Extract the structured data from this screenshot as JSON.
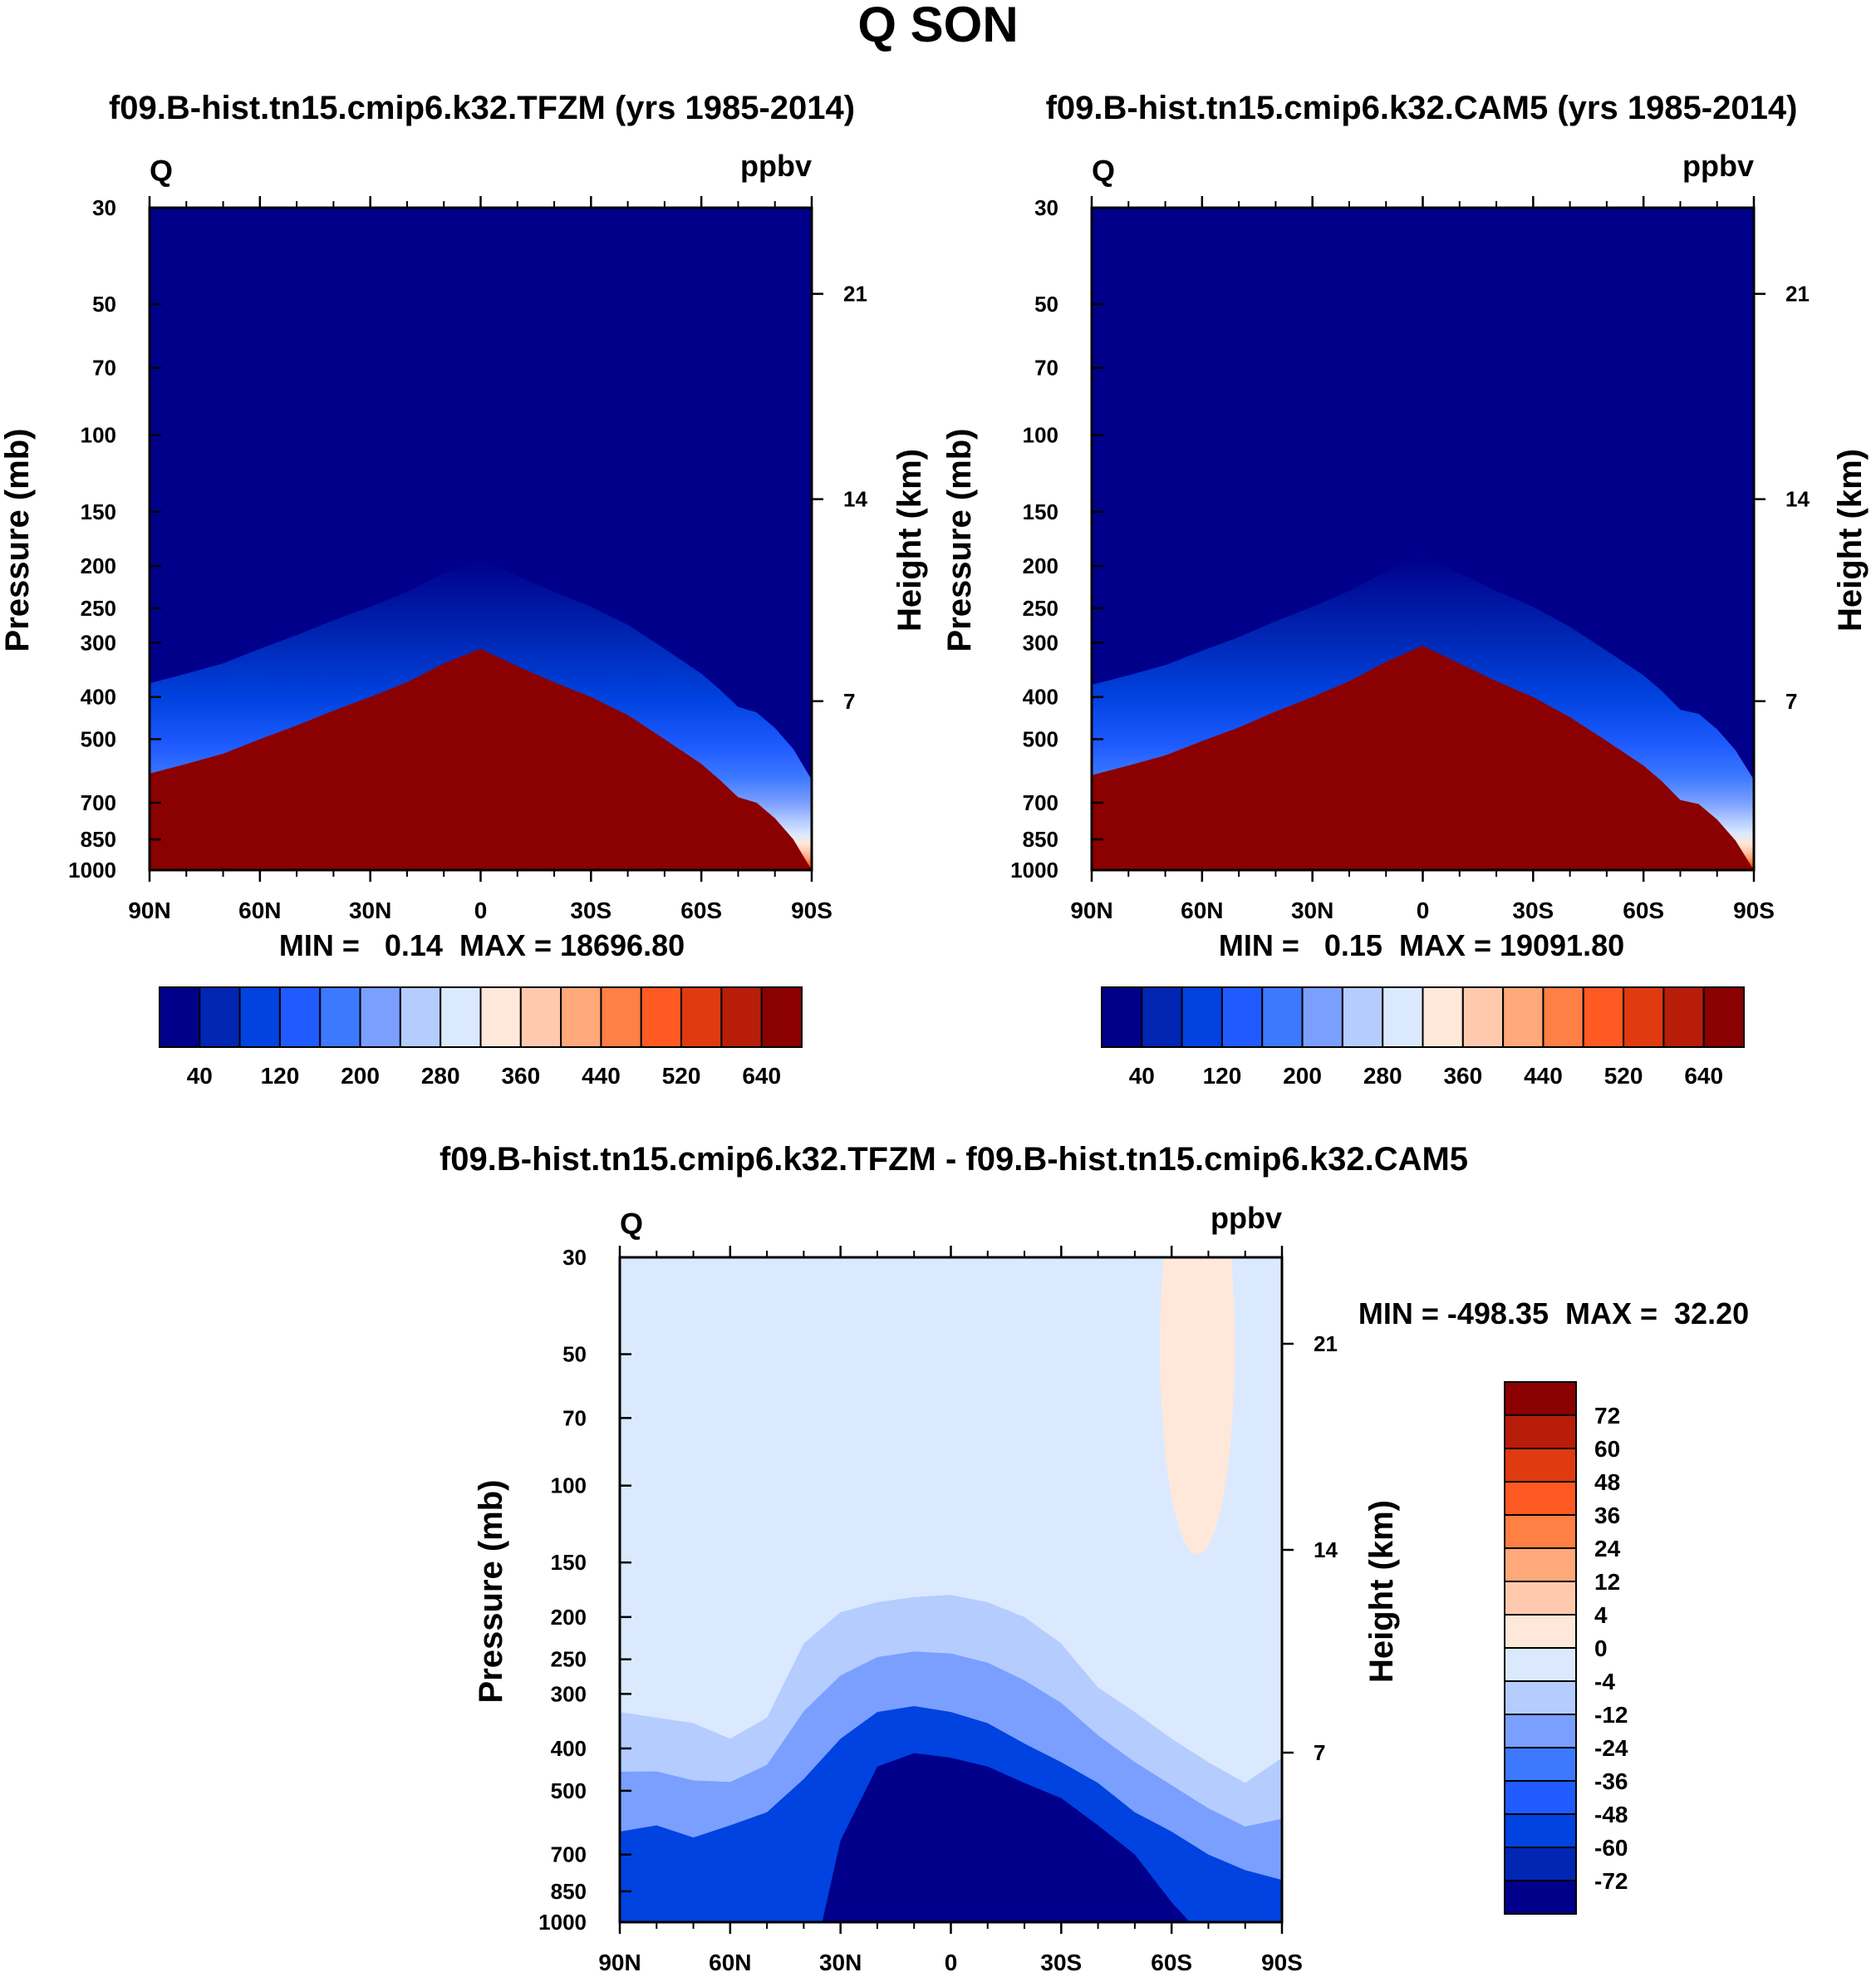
{
  "figure": {
    "title": "Q SON"
  },
  "chart_data": [
    {
      "type": "heatmap",
      "panel": "top-left",
      "title": "f09.B-hist.tn15.cmip6.k32.TFZM (yrs 1985-2014)",
      "variable_label": "Q",
      "units_label": "ppbv",
      "ylabel": "Pressure (mb)",
      "ylabel_right": "Height (km)",
      "x_ticks": [
        "90N",
        "60N",
        "30N",
        "0",
        "30S",
        "60S",
        "90S"
      ],
      "y_ticks": [
        "30",
        "50",
        "70",
        "100",
        "150",
        "200",
        "250",
        "300",
        "400",
        "500",
        "700",
        "850",
        "1000"
      ],
      "height_ticks": [
        "21",
        "14",
        "7"
      ],
      "stats": "MIN =   0.14  MAX = 18696.80",
      "min": 0.14,
      "max": 18696.8,
      "x_range": [
        90,
        -90
      ],
      "y_range_mb": [
        30,
        1000
      ],
      "y_scale": "log",
      "colorbar": {
        "orientation": "horizontal",
        "labels": [
          "40",
          "120",
          "200",
          "280",
          "360",
          "440",
          "520",
          "640"
        ],
        "colors": [
          "#00008b",
          "#0026b3",
          "#0043e0",
          "#1f5bff",
          "#3d79ff",
          "#7a9fff",
          "#b5ccff",
          "#dbe9ff",
          "#ffe8d9",
          "#ffc9ad",
          "#ffa87a",
          "#ff7f45",
          "#ff5a21",
          "#e03a10",
          "#b81d0a",
          "#8b0000"
        ]
      },
      "contour_profile": {
        "lat": [
          90,
          80,
          70,
          60,
          50,
          40,
          30,
          20,
          10,
          0,
          -10,
          -20,
          -30,
          -40,
          -50,
          -60,
          -65,
          -70,
          -75,
          -80,
          -85,
          -90
        ],
        "boundary_mb": [
          600,
          570,
          540,
          500,
          465,
          430,
          400,
          370,
          335,
          310,
          340,
          370,
          400,
          440,
          500,
          570,
          620,
          680,
          700,
          760,
          850,
          1000
        ]
      }
    },
    {
      "type": "heatmap",
      "panel": "top-right",
      "title": "f09.B-hist.tn15.cmip6.k32.CAM5 (yrs 1985-2014)",
      "variable_label": "Q",
      "units_label": "ppbv",
      "ylabel": "Pressure (mb)",
      "ylabel_right": "Height (km)",
      "x_ticks": [
        "90N",
        "60N",
        "30N",
        "0",
        "30S",
        "60S",
        "90S"
      ],
      "y_ticks": [
        "30",
        "50",
        "70",
        "100",
        "150",
        "200",
        "250",
        "300",
        "400",
        "500",
        "700",
        "850",
        "1000"
      ],
      "height_ticks": [
        "21",
        "14",
        "7"
      ],
      "stats": "MIN =   0.15  MAX = 19091.80",
      "min": 0.15,
      "max": 19091.8,
      "x_range": [
        90,
        -90
      ],
      "y_range_mb": [
        30,
        1000
      ],
      "y_scale": "log",
      "colorbar": {
        "orientation": "horizontal",
        "labels": [
          "40",
          "120",
          "200",
          "280",
          "360",
          "440",
          "520",
          "640"
        ],
        "colors": [
          "#00008b",
          "#0026b3",
          "#0043e0",
          "#1f5bff",
          "#3d79ff",
          "#7a9fff",
          "#b5ccff",
          "#dbe9ff",
          "#ffe8d9",
          "#ffc9ad",
          "#ffa87a",
          "#ff7f45",
          "#ff5a21",
          "#e03a10",
          "#b81d0a",
          "#8b0000"
        ]
      },
      "contour_profile": {
        "lat": [
          90,
          80,
          70,
          60,
          50,
          40,
          30,
          20,
          10,
          0,
          -10,
          -20,
          -30,
          -40,
          -50,
          -60,
          -65,
          -70,
          -75,
          -80,
          -85,
          -90
        ],
        "boundary_mb": [
          605,
          575,
          545,
          505,
          470,
          432,
          400,
          368,
          332,
          305,
          335,
          368,
          400,
          445,
          505,
          575,
          625,
          690,
          705,
          765,
          855,
          1000
        ]
      }
    },
    {
      "type": "heatmap",
      "panel": "bottom",
      "title": "f09.B-hist.tn15.cmip6.k32.TFZM - f09.B-hist.tn15.cmip6.k32.CAM5",
      "variable_label": "Q",
      "units_label": "ppbv",
      "ylabel": "Pressure (mb)",
      "ylabel_right": "Height (km)",
      "x_ticks": [
        "90N",
        "60N",
        "30N",
        "0",
        "30S",
        "60S",
        "90S"
      ],
      "y_ticks": [
        "30",
        "50",
        "70",
        "100",
        "150",
        "200",
        "250",
        "300",
        "400",
        "500",
        "700",
        "850",
        "1000"
      ],
      "height_ticks": [
        "21",
        "14",
        "7"
      ],
      "stats": "MIN = -498.35  MAX =  32.20",
      "min": -498.35,
      "max": 32.2,
      "x_range": [
        90,
        -90
      ],
      "y_range_mb": [
        30,
        1000
      ],
      "y_scale": "log",
      "colorbar": {
        "orientation": "vertical",
        "labels": [
          "72",
          "60",
          "48",
          "36",
          "24",
          "12",
          "4",
          "0",
          "-4",
          "-12",
          "-24",
          "-36",
          "-48",
          "-60",
          "-72"
        ],
        "colors": [
          "#8b0000",
          "#b81d0a",
          "#e03a10",
          "#ff5a21",
          "#ff7f45",
          "#ffa87a",
          "#ffc9ad",
          "#ffe8d9",
          "#dbe9ff",
          "#b5ccff",
          "#7a9fff",
          "#3d79ff",
          "#1f5bff",
          "#0043e0",
          "#0026b3",
          "#00008b"
        ]
      },
      "contour_profile": {
        "lat": [
          90,
          80,
          70,
          60,
          50,
          40,
          30,
          20,
          10,
          0,
          -10,
          -20,
          -30,
          -40,
          -50,
          -60,
          -70,
          -80,
          -90
        ],
        "outer_mb": [
          330,
          340,
          350,
          380,
          340,
          230,
          195,
          185,
          180,
          178,
          185,
          200,
          230,
          290,
          330,
          380,
          430,
          480,
          420
        ],
        "inner_mb": [
          620,
          600,
          640,
          600,
          560,
          470,
          380,
          330,
          320,
          330,
          350,
          390,
          430,
          480,
          560,
          620,
          700,
          760,
          800
        ]
      }
    }
  ]
}
